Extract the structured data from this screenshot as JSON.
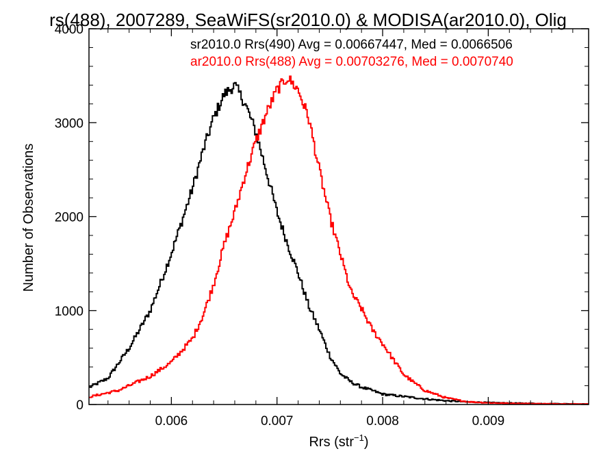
{
  "chart_data": {
    "type": "line",
    "title": "rs(488), 2007289, SeaWiFS(sr2010.0) & MODISA(ar2010.0), Olig",
    "xlabel_main": "Rrs (str",
    "xlabel_sup": "−1",
    "xlabel_close": ")",
    "ylabel": "Number of Observations",
    "xlim": [
      0.00522,
      0.00995
    ],
    "ylim": [
      0,
      4000
    ],
    "xticks": [
      0.006,
      0.007,
      0.008,
      0.009
    ],
    "xtick_labels": [
      "0.006",
      "0.007",
      "0.008",
      "0.009"
    ],
    "yticks": [
      0,
      1000,
      2000,
      3000,
      4000
    ],
    "ytick_labels": [
      "0",
      "1000",
      "2000",
      "3000",
      "4000"
    ],
    "grid": false,
    "legend_position": "top-right",
    "colors": {
      "sr": "#000000",
      "ar": "#ff0000"
    },
    "series": [
      {
        "name": "sr2010.0 Rrs(490) Avg = 0.00667447, Med = 0.0066506",
        "color": "#000000",
        "x": [
          0.00522,
          0.0054,
          0.0056,
          0.0058,
          0.0059,
          0.006,
          0.0061,
          0.0062,
          0.0063,
          0.0064,
          0.0065,
          0.0066,
          0.0067,
          0.0068,
          0.0069,
          0.007,
          0.0071,
          0.0072,
          0.0073,
          0.0074,
          0.0075,
          0.0076,
          0.0077,
          0.0078,
          0.0079,
          0.008,
          0.0082,
          0.0084,
          0.0086,
          0.0088,
          0.009,
          0.0092,
          0.0095,
          0.00995
        ],
        "y": [
          180,
          280,
          600,
          1000,
          1300,
          1610,
          1950,
          2300,
          2700,
          3050,
          3300,
          3400,
          3200,
          2900,
          2480,
          2050,
          1710,
          1400,
          1050,
          800,
          520,
          330,
          240,
          185,
          150,
          110,
          85,
          60,
          40,
          28,
          20,
          15,
          10,
          5
        ]
      },
      {
        "name": "ar2010.0 Rrs(488) Avg = 0.00703276, Med = 0.0070740",
        "color": "#ff0000",
        "x": [
          0.00522,
          0.0055,
          0.0058,
          0.006,
          0.0062,
          0.0063,
          0.0064,
          0.0065,
          0.0066,
          0.0067,
          0.0068,
          0.0069,
          0.007,
          0.0071,
          0.0072,
          0.0073,
          0.0074,
          0.0075,
          0.0076,
          0.0077,
          0.0078,
          0.0079,
          0.008,
          0.0081,
          0.0082,
          0.0083,
          0.0084,
          0.0086,
          0.0088,
          0.009,
          0.0092,
          0.0095,
          0.00995
        ],
        "y": [
          80,
          150,
          300,
          450,
          700,
          950,
          1280,
          1700,
          2050,
          2450,
          2800,
          3100,
          3350,
          3480,
          3350,
          3050,
          2500,
          2000,
          1600,
          1200,
          1020,
          800,
          650,
          480,
          320,
          230,
          150,
          70,
          30,
          18,
          12,
          8,
          5
        ]
      }
    ]
  }
}
